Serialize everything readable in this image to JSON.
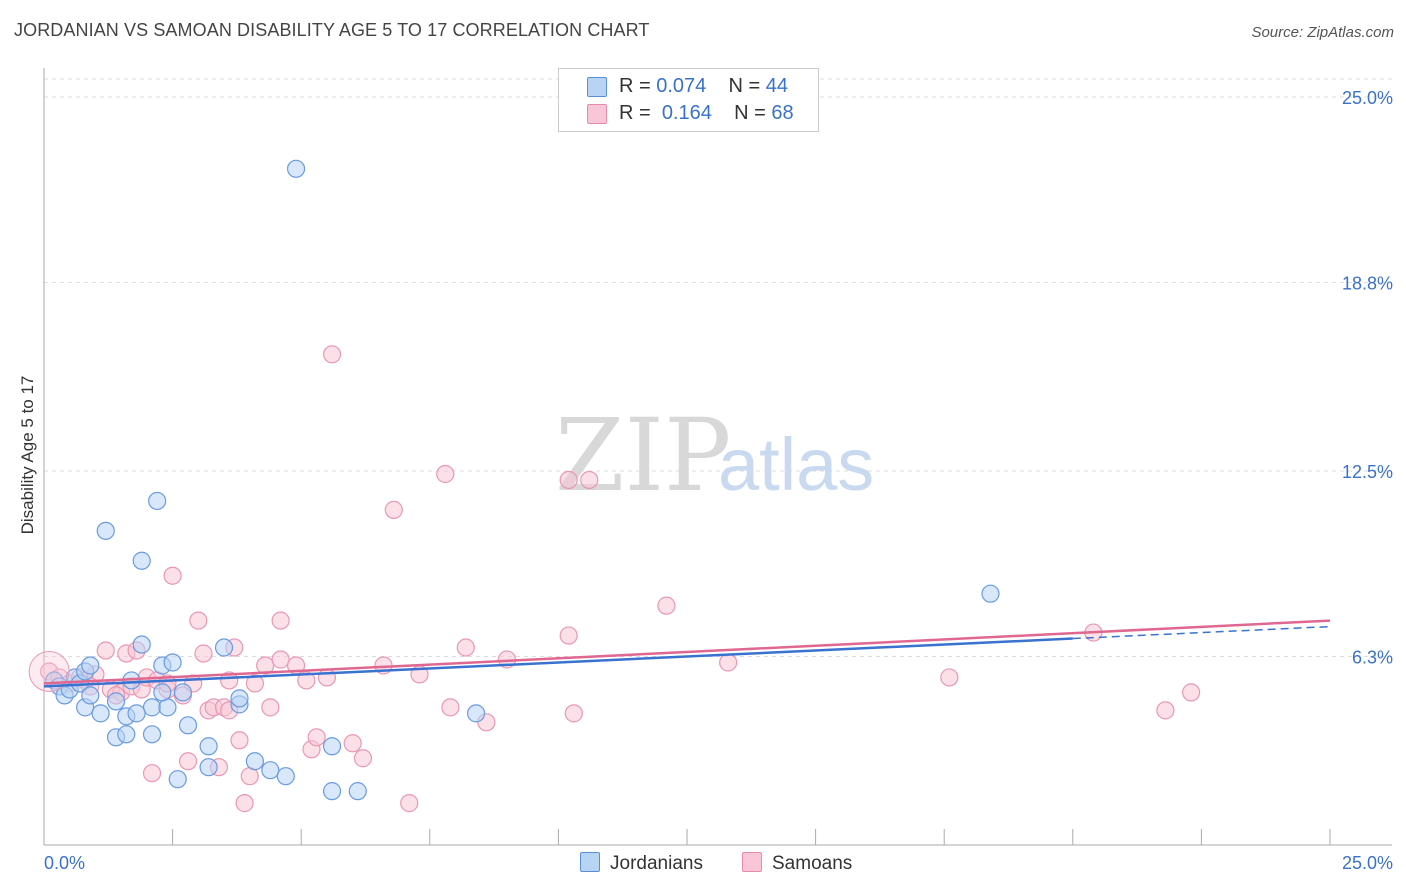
{
  "header": {
    "title": "JORDANIAN VS SAMOAN DISABILITY AGE 5 TO 17 CORRELATION CHART",
    "source": "Source: ZipAtlas.com"
  },
  "watermark": {
    "zip": "ZIP",
    "atlas": "atlas"
  },
  "legend": {
    "r_label": "R =",
    "n_label": "N =",
    "series": [
      {
        "name": "Jordanians",
        "r": "0.074",
        "n": "44",
        "fill": "#b8d4f4",
        "stroke": "#5a8fd6"
      },
      {
        "name": "Samoans",
        "r": "0.164",
        "n": "68",
        "fill": "#f8c6d6",
        "stroke": "#e88aaa"
      }
    ]
  },
  "chart_data": {
    "type": "scatter",
    "title": "JORDANIAN VS SAMOAN DISABILITY AGE 5 TO 17 CORRELATION CHART",
    "xlabel": "",
    "ylabel": "Disability Age 5 to 17",
    "xlim": [
      0,
      25
    ],
    "ylim": [
      0,
      25
    ],
    "x_tick_labels": [
      "0.0%",
      "25.0%"
    ],
    "y_ticks": [
      {
        "value": 6.3,
        "label": "6.3%"
      },
      {
        "value": 12.5,
        "label": "12.5%"
      },
      {
        "value": 18.8,
        "label": "18.8%"
      },
      {
        "value": 25.0,
        "label": "25.0%"
      }
    ],
    "grid": true,
    "series": [
      {
        "name": "Jordanians",
        "color": "#3a72d0",
        "point_fill": "#b8d4f4",
        "point_stroke": "#6a9be0",
        "trend": {
          "x0": 0,
          "y0": 5.3,
          "x1": 20,
          "y1": 6.9,
          "dash_x1": 25,
          "dash_y1": 7.3
        },
        "points": [
          [
            0.2,
            5.5
          ],
          [
            0.3,
            5.3
          ],
          [
            0.4,
            5.0
          ],
          [
            0.5,
            5.2
          ],
          [
            0.6,
            5.6
          ],
          [
            0.7,
            5.4
          ],
          [
            0.8,
            5.8
          ],
          [
            0.9,
            6.0
          ],
          [
            0.8,
            4.6
          ],
          [
            0.9,
            5.0
          ],
          [
            1.1,
            4.4
          ],
          [
            1.2,
            10.5
          ],
          [
            1.4,
            4.8
          ],
          [
            1.4,
            3.6
          ],
          [
            1.6,
            3.7
          ],
          [
            1.6,
            4.3
          ],
          [
            1.7,
            5.5
          ],
          [
            1.9,
            9.5
          ],
          [
            1.9,
            6.7
          ],
          [
            2.1,
            3.7
          ],
          [
            2.1,
            4.6
          ],
          [
            2.2,
            11.5
          ],
          [
            2.3,
            6.0
          ],
          [
            2.4,
            4.6
          ],
          [
            2.5,
            6.1
          ],
          [
            2.6,
            2.2
          ],
          [
            2.7,
            5.1
          ],
          [
            2.8,
            4.0
          ],
          [
            3.2,
            3.3
          ],
          [
            3.2,
            2.6
          ],
          [
            3.5,
            6.6
          ],
          [
            3.8,
            4.7
          ],
          [
            3.8,
            4.9
          ],
          [
            4.1,
            2.8
          ],
          [
            4.4,
            2.5
          ],
          [
            4.7,
            2.3
          ],
          [
            4.9,
            22.6
          ],
          [
            5.6,
            3.3
          ],
          [
            5.6,
            1.8
          ],
          [
            6.1,
            1.8
          ],
          [
            8.4,
            4.4
          ],
          [
            18.4,
            8.4
          ],
          [
            2.3,
            5.1
          ],
          [
            1.8,
            4.4
          ]
        ]
      },
      {
        "name": "Samoans",
        "color": "#e06890",
        "point_fill": "#f8c6d6",
        "point_stroke": "#e898b4",
        "trend": {
          "x0": 0,
          "y0": 5.4,
          "x1": 25,
          "y1": 7.5
        },
        "points": [
          [
            0.1,
            5.8
          ],
          [
            0.3,
            5.6
          ],
          [
            0.5,
            5.4
          ],
          [
            0.7,
            5.6
          ],
          [
            0.8,
            5.5
          ],
          [
            1.0,
            5.7
          ],
          [
            1.2,
            6.5
          ],
          [
            1.3,
            5.2
          ],
          [
            1.5,
            5.1
          ],
          [
            1.6,
            6.4
          ],
          [
            1.7,
            5.3
          ],
          [
            1.8,
            6.5
          ],
          [
            1.9,
            5.2
          ],
          [
            2.0,
            5.6
          ],
          [
            2.1,
            2.4
          ],
          [
            2.2,
            5.5
          ],
          [
            2.4,
            5.2
          ],
          [
            2.5,
            9.0
          ],
          [
            2.7,
            5.0
          ],
          [
            2.8,
            2.8
          ],
          [
            2.9,
            5.4
          ],
          [
            3.0,
            7.5
          ],
          [
            3.1,
            6.4
          ],
          [
            3.2,
            4.5
          ],
          [
            3.3,
            4.6
          ],
          [
            3.4,
            2.6
          ],
          [
            3.5,
            4.6
          ],
          [
            3.6,
            4.5
          ],
          [
            3.7,
            6.6
          ],
          [
            3.8,
            3.5
          ],
          [
            3.9,
            1.4
          ],
          [
            4.0,
            2.3
          ],
          [
            4.1,
            5.4
          ],
          [
            4.3,
            6.0
          ],
          [
            4.4,
            4.6
          ],
          [
            4.6,
            6.2
          ],
          [
            4.6,
            7.5
          ],
          [
            5.1,
            5.5
          ],
          [
            5.2,
            3.2
          ],
          [
            5.3,
            3.6
          ],
          [
            5.5,
            5.6
          ],
          [
            5.6,
            16.4
          ],
          [
            6.0,
            3.4
          ],
          [
            6.2,
            2.9
          ],
          [
            6.6,
            6.0
          ],
          [
            6.8,
            11.2
          ],
          [
            7.1,
            1.4
          ],
          [
            7.3,
            5.7
          ],
          [
            7.8,
            12.4
          ],
          [
            7.9,
            4.6
          ],
          [
            8.2,
            6.6
          ],
          [
            8.6,
            4.1
          ],
          [
            9.0,
            6.2
          ],
          [
            10.2,
            12.2
          ],
          [
            10.6,
            12.2
          ],
          [
            10.2,
            7.0
          ],
          [
            10.3,
            4.4
          ],
          [
            12.1,
            8.0
          ],
          [
            13.3,
            6.1
          ],
          [
            17.6,
            5.6
          ],
          [
            20.4,
            7.1
          ],
          [
            21.8,
            4.5
          ],
          [
            22.3,
            5.1
          ],
          [
            2.4,
            5.4
          ],
          [
            1.4,
            5.0
          ],
          [
            0.9,
            5.3
          ],
          [
            4.9,
            6.0
          ],
          [
            3.6,
            5.5
          ]
        ]
      }
    ]
  }
}
